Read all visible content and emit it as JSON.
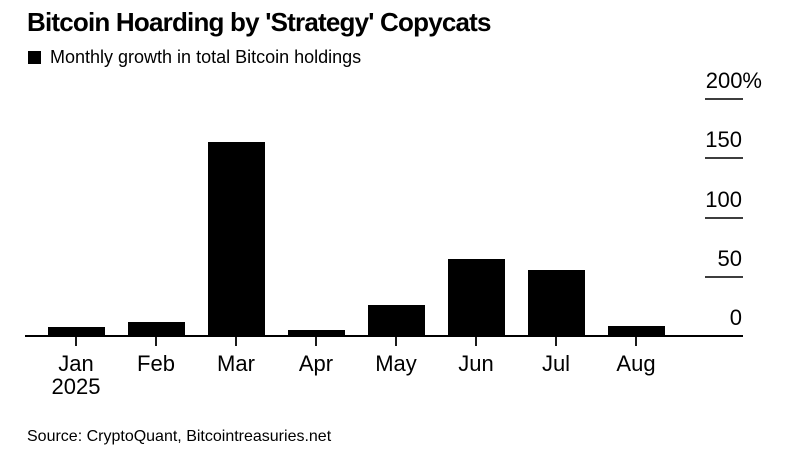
{
  "header": {
    "title": "Bitcoin Hoarding by 'Strategy' Copycats",
    "legend_label": "Monthly growth in total Bitcoin holdings",
    "legend_marker_color": "#000000"
  },
  "source": "Source: CryptoQuant, Bitcointreasuries.net",
  "chart_data": {
    "type": "bar",
    "title": "Bitcoin Hoarding by 'Strategy' Copycats",
    "series_name": "Monthly growth in total Bitcoin holdings",
    "categories": [
      "Jan",
      "Feb",
      "Mar",
      "Apr",
      "May",
      "Jun",
      "Jul",
      "Aug"
    ],
    "x_sub_label": "2025",
    "values": [
      7,
      11,
      163,
      4,
      25,
      64,
      55,
      8
    ],
    "unit": "%",
    "xlabel": "",
    "ylabel": "",
    "ylim": [
      0,
      200
    ],
    "y_ticks": [
      0,
      50,
      100,
      150,
      200
    ],
    "y_tick_labels": [
      "0",
      "50",
      "100",
      "150",
      "200%"
    ],
    "axis_side": "right",
    "grid": false,
    "legend_position": "top-left",
    "bar_color": "#000000",
    "background_color": "#ffffff"
  }
}
